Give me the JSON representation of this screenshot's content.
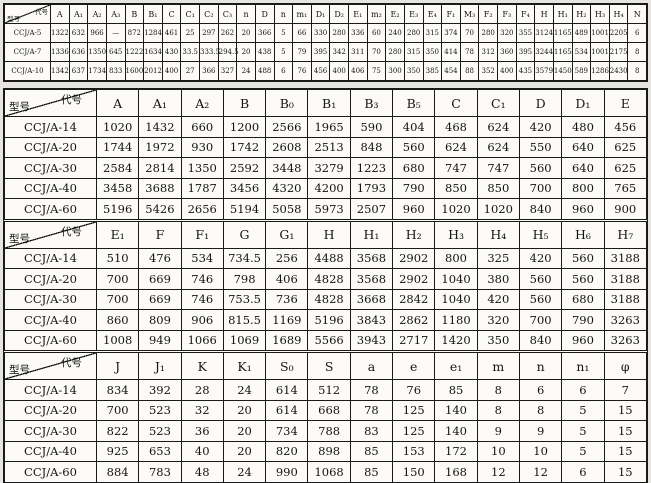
{
  "diagonal": {
    "top_right": "代号",
    "bottom_left": "型号"
  },
  "top_table": {
    "columns": [
      "A",
      "A₁",
      "A₂",
      "A₃",
      "B",
      "B₁",
      "C",
      "C₁",
      "C₂",
      "C₃",
      "n",
      "D",
      "n",
      "m₁",
      "D₁",
      "D₂",
      "E₁",
      "m₂",
      "E₂",
      "E₃",
      "E₄",
      "F₁",
      "M₃",
      "F₂",
      "F₃",
      "F₄",
      "H",
      "H₁",
      "H₂",
      "H₃",
      "H₄",
      "N"
    ],
    "rows": [
      {
        "model": "CCJ/A-5",
        "values": [
          1322,
          632,
          966,
          "—",
          872,
          1284,
          461,
          25,
          297,
          262,
          20,
          366,
          5,
          66,
          330,
          280,
          336,
          60,
          240,
          280,
          315,
          374,
          70,
          280,
          320,
          355,
          3124,
          1165,
          489,
          1001,
          2205,
          6
        ]
      },
      {
        "model": "CCJ/A-7",
        "values": [
          1336,
          636,
          1350,
          645,
          1222,
          1634,
          430,
          33.5,
          333.5,
          294.5,
          20,
          438,
          5,
          79,
          395,
          342,
          311,
          70,
          280,
          315,
          350,
          414,
          78,
          312,
          360,
          395,
          3244,
          1165,
          534,
          1001,
          2175,
          8
        ]
      },
      {
        "model": "CCJ/A-10",
        "values": [
          1342,
          637,
          1734,
          833,
          1600,
          2012,
          400,
          27,
          366,
          327,
          24,
          488,
          6,
          76,
          456,
          400,
          406,
          75,
          300,
          350,
          385,
          454,
          88,
          352,
          400,
          435,
          3579,
          1450,
          589,
          1286,
          2430,
          8
        ]
      }
    ]
  },
  "bottom_table": {
    "sections": [
      {
        "columns": [
          "A",
          "A₁",
          "A₂",
          "B",
          "B₀",
          "B₁",
          "B₃",
          "B₅",
          "C",
          "C₁",
          "D",
          "D₁",
          "E"
        ],
        "rows": [
          {
            "model": "CCJ/A-14",
            "values": [
              1020,
              1432,
              660,
              1200,
              2566,
              1965,
              590,
              404,
              468,
              624,
              420,
              480,
              456
            ]
          },
          {
            "model": "CCJ/A-20",
            "values": [
              1744,
              1972,
              930,
              1742,
              2608,
              2513,
              848,
              560,
              624,
              624,
              550,
              640,
              625
            ]
          },
          {
            "model": "CCJ/A-30",
            "values": [
              2584,
              2814,
              1350,
              2592,
              3448,
              3279,
              1223,
              680,
              747,
              747,
              560,
              640,
              625
            ]
          },
          {
            "model": "CCJ/A-40",
            "values": [
              3458,
              3688,
              1787,
              3456,
              4320,
              4200,
              1793,
              790,
              850,
              850,
              700,
              800,
              765
            ]
          },
          {
            "model": "CCJ/A-60",
            "values": [
              5196,
              5426,
              2656,
              5194,
              5058,
              5973,
              2507,
              960,
              1020,
              1020,
              840,
              960,
              900
            ]
          }
        ]
      },
      {
        "columns": [
          "E₁",
          "F",
          "F₁",
          "G",
          "G₁",
          "H",
          "H₁",
          "H₂",
          "H₃",
          "H₄",
          "H₅",
          "H₆",
          "H₇"
        ],
        "rows": [
          {
            "model": "CCJ/A-14",
            "values": [
              510,
              476,
              534,
              734.5,
              256,
              4488,
              3568,
              2902,
              800,
              325,
              420,
              560,
              3188
            ]
          },
          {
            "model": "CCJ/A-20",
            "values": [
              700,
              669,
              746,
              798,
              406,
              4828,
              3568,
              2902,
              1040,
              380,
              560,
              560,
              3188
            ]
          },
          {
            "model": "CCJ/A-30",
            "values": [
              700,
              669,
              746,
              753.5,
              736,
              4828,
              3668,
              2842,
              1040,
              420,
              560,
              680,
              3188
            ]
          },
          {
            "model": "CCJ/A-40",
            "values": [
              860,
              809,
              906,
              815.5,
              1169,
              5196,
              3843,
              2862,
              1180,
              320,
              700,
              790,
              3263
            ]
          },
          {
            "model": "CCJ/A-60",
            "values": [
              1008,
              949,
              1066,
              1069,
              1689,
              5566,
              3943,
              2717,
              1420,
              350,
              840,
              960,
              3263
            ]
          }
        ]
      },
      {
        "columns": [
          "J",
          "J₁",
          "K",
          "K₁",
          "S₀",
          "S",
          "a",
          "e",
          "e₁",
          "m",
          "n",
          "n₁",
          "φ"
        ],
        "rows": [
          {
            "model": "CCJ/A-14",
            "values": [
              834,
              392,
              28,
              24,
              614,
              512,
              78,
              76,
              85,
              8,
              6,
              6,
              7
            ]
          },
          {
            "model": "CCJ/A-20",
            "values": [
              700,
              523,
              32,
              20,
              614,
              668,
              78,
              125,
              140,
              8,
              8,
              5,
              15
            ]
          },
          {
            "model": "CCJ/A-30",
            "values": [
              822,
              523,
              36,
              20,
              734,
              788,
              83,
              125,
              140,
              9,
              9,
              5,
              15
            ]
          },
          {
            "model": "CCJ/A-40",
            "values": [
              925,
              653,
              40,
              20,
              820,
              898,
              85,
              153,
              172,
              10,
              10,
              5,
              15
            ]
          },
          {
            "model": "CCJ/A-60",
            "values": [
              884,
              783,
              48,
              24,
              990,
              1068,
              85,
              150,
              168,
              12,
              12,
              6,
              15
            ]
          }
        ]
      }
    ]
  }
}
